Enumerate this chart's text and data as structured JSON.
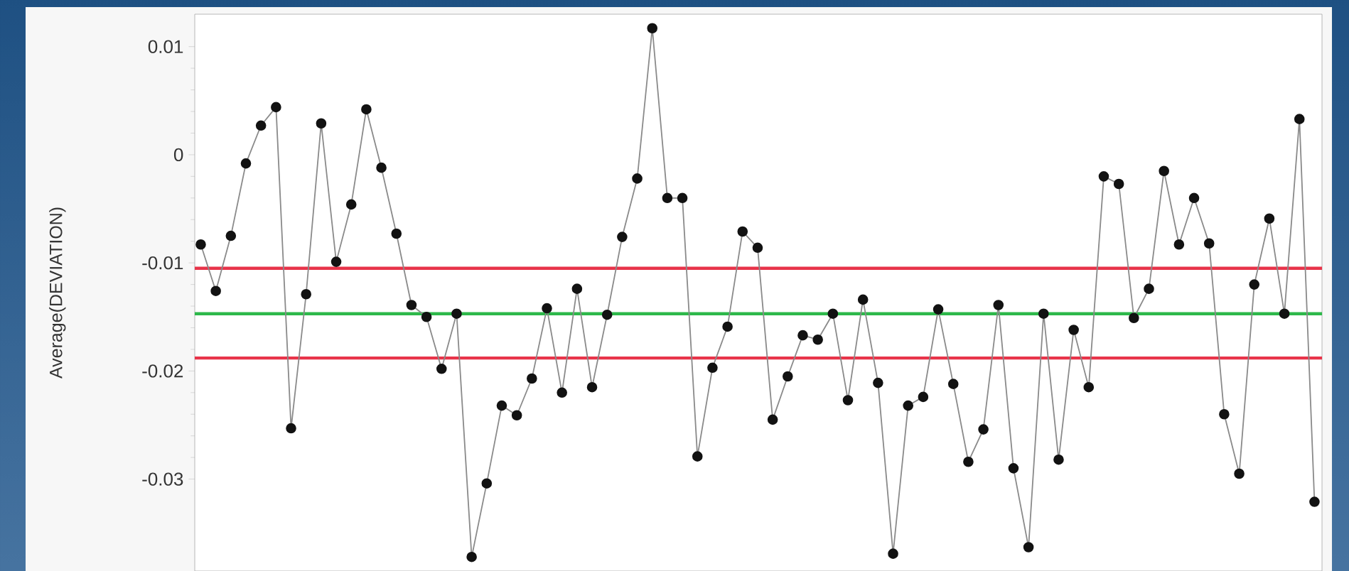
{
  "chart_data": {
    "type": "line",
    "ylabel": "Average(DEVIATION)",
    "categories": [
      null,
      null,
      null,
      null,
      null,
      null,
      null,
      null,
      null,
      null,
      null,
      null,
      null,
      null,
      null,
      null,
      null,
      null,
      null,
      null,
      null,
      null,
      null,
      null,
      null,
      null,
      null,
      null,
      null,
      null,
      null,
      null,
      null,
      null,
      null,
      null,
      null,
      null,
      null,
      null,
      null,
      null,
      null,
      null,
      null,
      null,
      null,
      null,
      null,
      null,
      null,
      null,
      null,
      null,
      null,
      null,
      null,
      null,
      null,
      null,
      null,
      null,
      null,
      null,
      null,
      null,
      null,
      null,
      null,
      null,
      null,
      null,
      null,
      null,
      null
    ],
    "series": [
      {
        "color": "#8a8a8a",
        "values": [
          -0.0083,
          -0.0126,
          -0.0075,
          -0.0008,
          0.0027,
          0.0044,
          -0.0253,
          -0.0129,
          0.0029,
          -0.0099,
          -0.0046,
          0.0042,
          -0.0012,
          -0.0073,
          -0.0139,
          -0.015,
          -0.0198,
          -0.0147,
          -0.0372,
          -0.0304,
          -0.0232,
          -0.0241,
          -0.0207,
          -0.0142,
          -0.022,
          -0.0124,
          -0.0215,
          -0.0148,
          -0.0076,
          -0.0022,
          0.0117,
          -0.004,
          -0.004,
          -0.0279,
          -0.0197,
          -0.0159,
          -0.0071,
          -0.0086,
          -0.0245,
          -0.0205,
          -0.0167,
          -0.0171,
          -0.0147,
          -0.0227,
          -0.0134,
          -0.0211,
          -0.0369,
          -0.0232,
          -0.0224,
          -0.0143,
          -0.0212,
          -0.0284,
          -0.0254,
          -0.0139,
          -0.029,
          -0.0363,
          -0.0147,
          -0.0282,
          -0.0162,
          -0.0215,
          -0.002,
          -0.0027,
          -0.0151,
          -0.0124,
          -0.0015,
          -0.0083,
          -0.004,
          -0.0082,
          -0.024,
          -0.0295,
          -0.012,
          -0.0059,
          -0.0147,
          0.0033,
          -0.0321
        ]
      }
    ],
    "ylim": [
      -0.0385,
      0.013
    ],
    "yticks": [
      0.01,
      0,
      -0.01,
      -0.02,
      -0.03
    ],
    "ref_lines": [
      {
        "axis": "y",
        "value": -0.0105,
        "color": "#e8344a"
      },
      {
        "axis": "y",
        "value": -0.0147,
        "color": "#2db84a"
      },
      {
        "axis": "y",
        "value": -0.0188,
        "color": "#e8344a"
      }
    ],
    "grid": false,
    "marker": "circle",
    "line_style": "solid"
  }
}
